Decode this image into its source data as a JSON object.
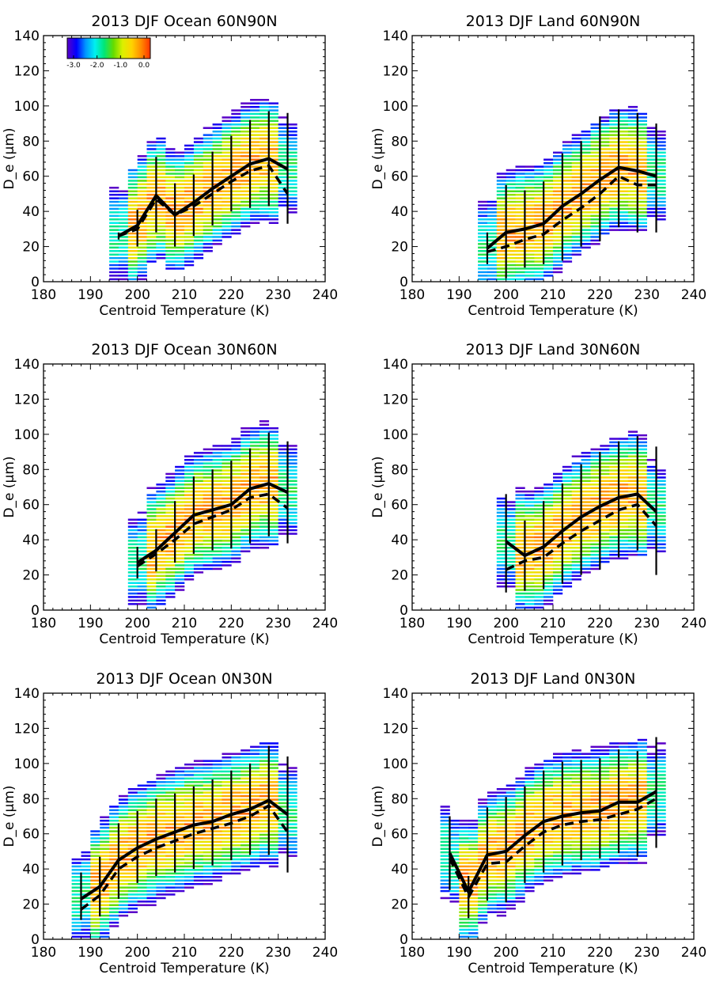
{
  "colorbar": {
    "ticks": [
      "-3.0",
      "-2.0",
      "-1.0",
      "0.0"
    ],
    "stops": [
      "#5a00c8",
      "#0000ff",
      "#0096ff",
      "#00f0f0",
      "#00e678",
      "#64dc00",
      "#dcf000",
      "#ffd200",
      "#ff8c00",
      "#ff3200"
    ]
  },
  "style": {
    "mean_line": "#000000",
    "median_line": "#000000"
  },
  "chart_data": [
    {
      "type": "heatmap",
      "title": "2013 DJF Ocean 60N90N",
      "xlabel": "Centroid Temperature (K)",
      "ylabel": "D_e (µm)",
      "xlim": [
        180,
        240
      ],
      "ylim": [
        0,
        140
      ],
      "xticks": [
        "180",
        "190",
        "200",
        "210",
        "220",
        "230",
        "240"
      ],
      "yticks": [
        "0",
        "20",
        "40",
        "60",
        "80",
        "100",
        "120",
        "140"
      ],
      "x": [
        196,
        200,
        204,
        208,
        212,
        216,
        220,
        224,
        228,
        232
      ],
      "mean": [
        26,
        32,
        49,
        38,
        45,
        53,
        60,
        67,
        70,
        64
      ],
      "median": [
        26,
        30,
        47,
        38,
        43,
        50,
        57,
        63,
        66,
        50
      ],
      "err_low": [
        24,
        20,
        28,
        20,
        26,
        32,
        40,
        42,
        43,
        33
      ],
      "err_high": [
        28,
        41,
        71,
        56,
        61,
        74,
        83,
        92,
        97,
        96
      ],
      "colorbar_shown": true
    },
    {
      "type": "heatmap",
      "title": "2013 DJF Land 60N90N",
      "xlabel": "Centroid Temperature (K)",
      "ylabel": "D_e (µm)",
      "xlim": [
        180,
        240
      ],
      "ylim": [
        0,
        140
      ],
      "xticks": [
        "180",
        "190",
        "200",
        "210",
        "220",
        "230",
        "240"
      ],
      "yticks": [
        "0",
        "20",
        "40",
        "60",
        "80",
        "100",
        "120",
        "140"
      ],
      "x": [
        196,
        200,
        204,
        208,
        212,
        216,
        220,
        224,
        228,
        232
      ],
      "mean": [
        19,
        28,
        30,
        33,
        43,
        50,
        58,
        65,
        63,
        60
      ],
      "median": [
        17,
        20,
        24,
        27,
        35,
        42,
        50,
        60,
        55,
        55
      ],
      "err_low": [
        10,
        2,
        8,
        10,
        12,
        20,
        23,
        31,
        28,
        28
      ],
      "err_high": [
        28,
        55,
        52,
        57,
        73,
        80,
        94,
        98,
        96,
        90
      ],
      "colorbar_shown": false
    },
    {
      "type": "heatmap",
      "title": "2013 DJF Ocean 30N60N",
      "xlabel": "Centroid Temperature (K)",
      "ylabel": "D_e (µm)",
      "xlim": [
        180,
        240
      ],
      "ylim": [
        0,
        140
      ],
      "xticks": [
        "180",
        "190",
        "200",
        "210",
        "220",
        "230",
        "240"
      ],
      "yticks": [
        "0",
        "20",
        "40",
        "60",
        "80",
        "100",
        "120",
        "140"
      ],
      "x": [
        200,
        204,
        208,
        212,
        216,
        220,
        224,
        228,
        232
      ],
      "mean": [
        27,
        34,
        44,
        54,
        57,
        60,
        69,
        72,
        67
      ],
      "median": [
        25,
        32,
        40,
        49,
        53,
        57,
        64,
        66,
        58
      ],
      "err_low": [
        18,
        22,
        27,
        32,
        34,
        35,
        38,
        42,
        38
      ],
      "err_high": [
        36,
        46,
        62,
        76,
        80,
        85,
        92,
        101,
        96
      ],
      "colorbar_shown": false
    },
    {
      "type": "heatmap",
      "title": "2013 DJF Land 30N60N",
      "xlabel": "Centroid Temperature (K)",
      "ylabel": "D_e (µm)",
      "xlim": [
        180,
        240
      ],
      "ylim": [
        0,
        140
      ],
      "xticks": [
        "180",
        "190",
        "200",
        "210",
        "220",
        "230",
        "240"
      ],
      "yticks": [
        "0",
        "20",
        "40",
        "60",
        "80",
        "100",
        "120",
        "140"
      ],
      "x": [
        200,
        204,
        208,
        212,
        216,
        220,
        224,
        228,
        232
      ],
      "mean": [
        39,
        31,
        36,
        45,
        53,
        59,
        64,
        66,
        56
      ],
      "median": [
        23,
        28,
        30,
        38,
        45,
        51,
        57,
        60,
        48
      ],
      "err_low": [
        10,
        11,
        12,
        15,
        20,
        23,
        30,
        34,
        20
      ],
      "err_high": [
        66,
        51,
        62,
        72,
        83,
        90,
        96,
        99,
        93
      ],
      "colorbar_shown": false
    },
    {
      "type": "heatmap",
      "title": "2013 DJF Ocean 0N30N",
      "xlabel": "Centroid Temperature (K)",
      "ylabel": "D_e (µm)",
      "xlim": [
        180,
        240
      ],
      "ylim": [
        0,
        140
      ],
      "xticks": [
        "180",
        "190",
        "200",
        "210",
        "220",
        "230",
        "240"
      ],
      "yticks": [
        "0",
        "20",
        "40",
        "60",
        "80",
        "100",
        "120",
        "140"
      ],
      "x": [
        188,
        192,
        196,
        200,
        204,
        208,
        212,
        216,
        220,
        224,
        228,
        232
      ],
      "mean": [
        23,
        30,
        45,
        52,
        57,
        61,
        65,
        67,
        71,
        74,
        79,
        71
      ],
      "median": [
        17,
        25,
        40,
        47,
        52,
        56,
        60,
        63,
        66,
        70,
        76,
        61
      ],
      "err_low": [
        11,
        13,
        23,
        32,
        36,
        38,
        40,
        42,
        45,
        48,
        48,
        38
      ],
      "err_high": [
        38,
        47,
        66,
        73,
        80,
        83,
        87,
        91,
        96,
        100,
        110,
        104
      ],
      "colorbar_shown": false
    },
    {
      "type": "heatmap",
      "title": "2013 DJF Land 0N30N",
      "xlabel": "Centroid Temperature (K)",
      "ylabel": "D_e (µm)",
      "xlim": [
        180,
        240
      ],
      "ylim": [
        0,
        140
      ],
      "xticks": [
        "180",
        "190",
        "200",
        "210",
        "220",
        "230",
        "240"
      ],
      "yticks": [
        "0",
        "20",
        "40",
        "60",
        "80",
        "100",
        "120",
        "140"
      ],
      "x": [
        188,
        192,
        196,
        200,
        204,
        208,
        212,
        216,
        220,
        224,
        228,
        232
      ],
      "mean": [
        49,
        27,
        48,
        50,
        59,
        67,
        70,
        72,
        73,
        78,
        78,
        84
      ],
      "median": [
        46,
        24,
        43,
        44,
        53,
        61,
        65,
        67,
        68,
        71,
        74,
        80
      ],
      "err_low": [
        28,
        12,
        22,
        21,
        32,
        38,
        42,
        45,
        46,
        49,
        47,
        52
      ],
      "err_high": [
        70,
        36,
        75,
        81,
        87,
        96,
        101,
        102,
        103,
        108,
        107,
        115
      ],
      "colorbar_shown": false
    }
  ]
}
